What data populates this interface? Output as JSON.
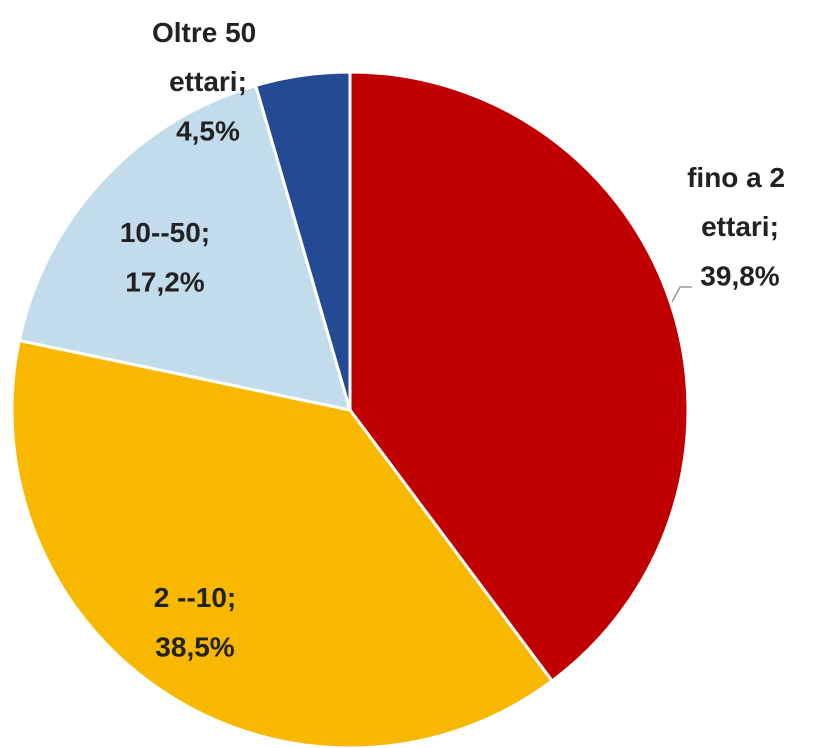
{
  "chart_data": {
    "type": "pie",
    "categories": [
      "fino a 2 ettari;",
      "2 --10;",
      "10--50;",
      "Oltre 50 ettari;"
    ],
    "values": [
      39.8,
      38.5,
      17.2,
      4.5
    ],
    "value_labels": [
      "39,8%",
      "38,5%",
      "17,2%",
      "4,5%"
    ],
    "colors": [
      "#c00000",
      "#f8b800",
      "#c2dcec",
      "#234a93"
    ]
  }
}
